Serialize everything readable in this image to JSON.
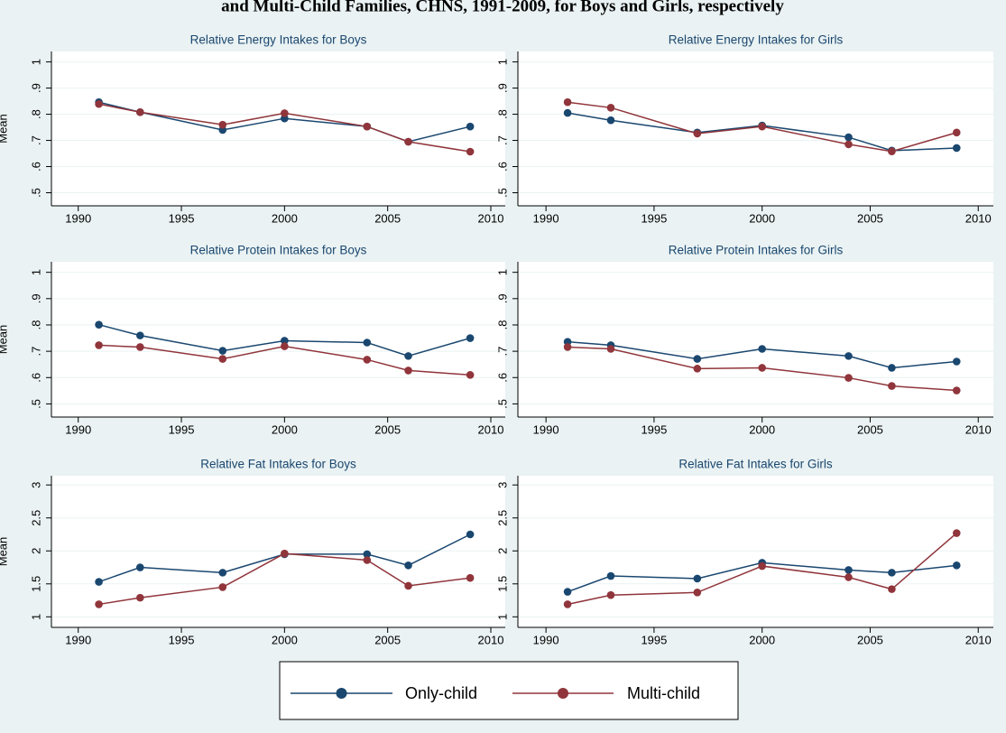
{
  "title": "and Multi-Child Families, CHNS, 1991-2009, for Boys and Girls, respectively",
  "legend": [
    {
      "label": "Only-child",
      "color": "#1a476f"
    },
    {
      "label": "Multi-child",
      "color": "#90353b"
    }
  ],
  "chart_data": [
    {
      "type": "line",
      "title": "Relative Energy Intakes for Boys",
      "y_label": "Mean",
      "x": [
        1991,
        1993,
        1997,
        2000,
        2004,
        2006,
        2009
      ],
      "series": [
        {
          "color": "#1a476f",
          "values": [
            0.846,
            0.808,
            0.74,
            0.784,
            0.753,
            0.695,
            0.753
          ]
        },
        {
          "color": "#90353b",
          "values": [
            0.839,
            0.808,
            0.76,
            0.804,
            0.753,
            0.695,
            0.657
          ]
        }
      ],
      "xlim": [
        1988.7,
        2010.7
      ],
      "xticks": [
        1990,
        1995,
        2000,
        2005,
        2010
      ],
      "ylim": [
        0.45,
        1.04
      ],
      "yticks": [
        {
          "value": 0.5,
          "label": ".5"
        },
        {
          "value": 0.6,
          "label": ".6"
        },
        {
          "value": 0.7,
          "label": ".7"
        },
        {
          "value": 0.8,
          "label": ".8"
        },
        {
          "value": 0.9,
          "label": ".9"
        },
        1
      ],
      "grid": true
    },
    {
      "type": "line",
      "title": "Relative Energy Intakes for Girls",
      "x": [
        1991,
        1993,
        1997,
        2000,
        2004,
        2006,
        2009
      ],
      "series": [
        {
          "color": "#1a476f",
          "values": [
            0.805,
            0.777,
            0.73,
            0.757,
            0.712,
            0.661,
            0.671
          ]
        },
        {
          "color": "#90353b",
          "values": [
            0.846,
            0.825,
            0.726,
            0.753,
            0.685,
            0.658,
            0.73
          ]
        }
      ],
      "xlim": [
        1988.7,
        2010.7
      ],
      "xticks": [
        1990,
        1995,
        2000,
        2005,
        2010
      ],
      "ylim": [
        0.45,
        1.04
      ],
      "yticks": [
        {
          "value": 0.5,
          "label": ".5"
        },
        {
          "value": 0.6,
          "label": ".6"
        },
        {
          "value": 0.7,
          "label": ".7"
        },
        {
          "value": 0.8,
          "label": ".8"
        },
        {
          "value": 0.9,
          "label": ".9"
        },
        1
      ],
      "grid": true
    },
    {
      "type": "line",
      "title": "Relative Protein Intakes for Boys",
      "y_label": "Mean",
      "x": [
        1991,
        1993,
        1997,
        2000,
        2004,
        2006,
        2009
      ],
      "series": [
        {
          "color": "#1a476f",
          "values": [
            0.801,
            0.76,
            0.702,
            0.74,
            0.733,
            0.682,
            0.75
          ]
        },
        {
          "color": "#90353b",
          "values": [
            0.723,
            0.716,
            0.671,
            0.719,
            0.668,
            0.627,
            0.61
          ]
        }
      ],
      "xlim": [
        1988.7,
        2010.7
      ],
      "xticks": [
        1990,
        1995,
        2000,
        2005,
        2010
      ],
      "ylim": [
        0.45,
        1.04
      ],
      "yticks": [
        {
          "value": 0.5,
          "label": ".5"
        },
        {
          "value": 0.6,
          "label": ".6"
        },
        {
          "value": 0.7,
          "label": ".7"
        },
        {
          "value": 0.8,
          "label": ".8"
        },
        {
          "value": 0.9,
          "label": ".9"
        },
        1
      ],
      "grid": true
    },
    {
      "type": "line",
      "title": "Relative Protein Intakes for Girls",
      "x": [
        1991,
        1993,
        1997,
        2000,
        2004,
        2006,
        2009
      ],
      "series": [
        {
          "color": "#1a476f",
          "values": [
            0.736,
            0.723,
            0.671,
            0.709,
            0.682,
            0.637,
            0.661
          ]
        },
        {
          "color": "#90353b",
          "values": [
            0.716,
            0.709,
            0.634,
            0.637,
            0.599,
            0.568,
            0.551
          ]
        }
      ],
      "xlim": [
        1988.7,
        2010.7
      ],
      "xticks": [
        1990,
        1995,
        2000,
        2005,
        2010
      ],
      "ylim": [
        0.45,
        1.04
      ],
      "yticks": [
        {
          "value": 0.5,
          "label": ".5"
        },
        {
          "value": 0.6,
          "label": ".6"
        },
        {
          "value": 0.7,
          "label": ".7"
        },
        {
          "value": 0.8,
          "label": ".8"
        },
        {
          "value": 0.9,
          "label": ".9"
        },
        1
      ],
      "grid": true
    },
    {
      "type": "line",
      "title": "Relative Fat Intakes for Boys",
      "y_label": "Mean",
      "x": [
        1991,
        1993,
        1997,
        2000,
        2004,
        2006,
        2009
      ],
      "series": [
        {
          "color": "#1a476f",
          "values": [
            1.53,
            1.75,
            1.67,
            1.95,
            1.95,
            1.78,
            2.25
          ]
        },
        {
          "color": "#90353b",
          "values": [
            1.19,
            1.29,
            1.45,
            1.96,
            1.86,
            1.47,
            1.59
          ]
        }
      ],
      "xlim": [
        1988.7,
        2010.7
      ],
      "xticks": [
        1990,
        1995,
        2000,
        2005,
        2010
      ],
      "ylim": [
        0.84,
        3.14
      ],
      "yticks": [
        1,
        1.5,
        2,
        2.5,
        3
      ],
      "grid": true
    },
    {
      "type": "line",
      "title": "Relative Fat Intakes for Girls",
      "x": [
        1991,
        1993,
        1997,
        2000,
        2004,
        2006,
        2009
      ],
      "series": [
        {
          "color": "#1a476f",
          "values": [
            1.38,
            1.62,
            1.58,
            1.82,
            1.71,
            1.67,
            1.78
          ]
        },
        {
          "color": "#90353b",
          "values": [
            1.19,
            1.33,
            1.37,
            1.77,
            1.6,
            1.42,
            2.27
          ]
        }
      ],
      "xlim": [
        1988.7,
        2010.7
      ],
      "xticks": [
        1990,
        1995,
        2000,
        2005,
        2010
      ],
      "ylim": [
        0.84,
        3.14
      ],
      "yticks": [
        1,
        1.5,
        2,
        2.5,
        3
      ],
      "grid": true
    }
  ]
}
